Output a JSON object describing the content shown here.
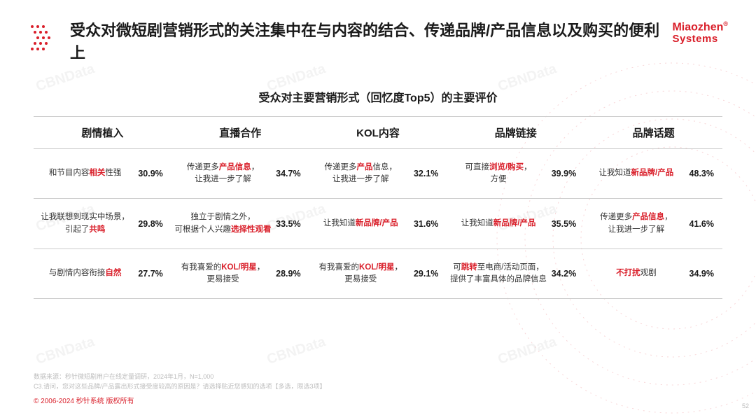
{
  "title": "受众对微短剧营销形式的关注集中在与内容的结合、传递品牌/产品信息以及购买的便利上",
  "logo": {
    "line1": "Miaozhen",
    "line2": "Systems"
  },
  "subtitle": "受众对主要营销形式（回忆度Top5）的主要评价",
  "columns": [
    "剧情植入",
    "直播合作",
    "KOL内容",
    "品牌链接",
    "品牌话题"
  ],
  "rows": [
    [
      {
        "pre": "和节目内容",
        "hl": "相关",
        "post": "性强",
        "pct": "30.9%"
      },
      {
        "pre": "传递更多",
        "hl": "产品信息",
        "post": "，\n让我进一步了解",
        "pct": "34.7%"
      },
      {
        "pre": "传递更多",
        "hl": "产品",
        "post": "信息，\n让我进一步了解",
        "pct": "32.1%"
      },
      {
        "pre": "可直接",
        "hl": "浏览/购买",
        "post": "，\n方便",
        "pct": "39.9%"
      },
      {
        "pre": "让我知道",
        "hl": "新品牌/产品",
        "post": "",
        "pct": "48.3%"
      }
    ],
    [
      {
        "pre": "让我联想到现实中场景，\n引起了",
        "hl": "共鸣",
        "post": "",
        "pct": "29.8%"
      },
      {
        "pre": "独立于剧情之外，\n可根据个人兴趣",
        "hl": "选择性观看",
        "post": "",
        "pct": "33.5%"
      },
      {
        "pre": "让我知道",
        "hl": "新品牌/产品",
        "post": "",
        "pct": "31.6%"
      },
      {
        "pre": "让我知道",
        "hl": "新品牌/产品",
        "post": "",
        "pct": "35.5%"
      },
      {
        "pre": "传递更多",
        "hl": "产品信息",
        "post": "，\n让我进一步了解",
        "pct": "41.6%"
      }
    ],
    [
      {
        "pre": "与剧情内容衔接",
        "hl": "自然",
        "post": "",
        "pct": "27.7%"
      },
      {
        "pre": "有我喜爱的",
        "hl": "KOL/明星",
        "post": "，\n更易接受",
        "pct": "28.9%"
      },
      {
        "pre": "有我喜爱的",
        "hl": "KOL/明星",
        "post": "，\n更易接受",
        "pct": "29.1%"
      },
      {
        "pre": "可",
        "hl": "跳转",
        "post": "至电商/活动页面，\n提供了丰富具体的品牌信息",
        "pct": "34.2%"
      },
      {
        "pre": "",
        "hl": "不打扰",
        "post": "观剧",
        "pct": "34.9%"
      }
    ]
  ],
  "footnotes": [
    "数据来源：秒针微短剧用户在线定量调研，2024年1月，N=1,000",
    "C3.请问，您对这些品牌/产品露出形式接受度较高的原因是？请选择贴近您感知的选项【多选，限选3项】"
  ],
  "copyright": "© 2006-2024 秒针系统 版权所有",
  "pagenum": "52",
  "watermark": "CBNData",
  "colors": {
    "accent": "#d91f2a",
    "text": "#1a1a1a",
    "border": "#cccccc",
    "muted": "#bcbcbc"
  }
}
